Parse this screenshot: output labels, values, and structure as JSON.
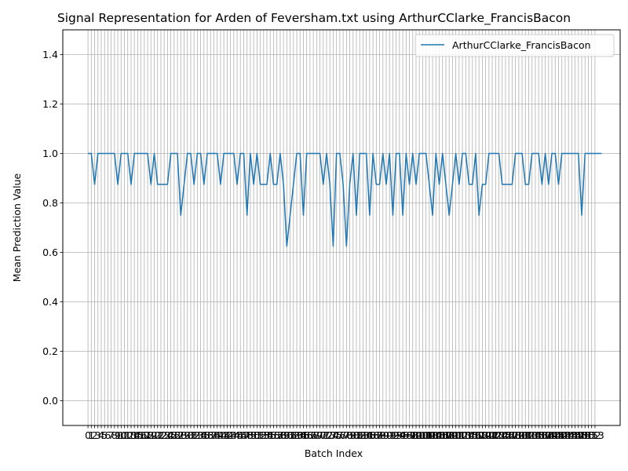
{
  "chart_data": {
    "type": "line",
    "title": "Signal Representation for Arden of Feversham.txt using ArthurCClarke_FrancisBacon",
    "xlabel": "Batch Index",
    "ylabel": "Mean Prediction Value",
    "xlim": [
      -7.6,
      160.6
    ],
    "ylim": [
      -0.1,
      1.5
    ],
    "yticks": [
      0.0,
      0.2,
      0.4,
      0.6,
      0.8,
      1.0,
      1.2,
      1.4
    ],
    "ytick_labels": [
      "0.0",
      "0.2",
      "0.4",
      "0.6",
      "0.8",
      "1.0",
      "1.2",
      "1.4"
    ],
    "xticks_every_integer": [
      0,
      153
    ],
    "grid": true,
    "legend_position": "upper right",
    "series": [
      {
        "name": "ArthurCClarke_FrancisBacon",
        "color": "#1f77b4",
        "x_start": 0,
        "values": [
          1.0,
          1.0,
          0.875,
          1.0,
          1.0,
          1.0,
          1.0,
          1.0,
          1.0,
          0.875,
          1.0,
          1.0,
          1.0,
          0.875,
          1.0,
          1.0,
          1.0,
          1.0,
          1.0,
          0.875,
          1.0,
          0.875,
          0.875,
          0.875,
          0.875,
          1.0,
          1.0,
          1.0,
          0.75,
          0.875,
          1.0,
          1.0,
          0.875,
          1.0,
          1.0,
          0.875,
          1.0,
          1.0,
          1.0,
          1.0,
          0.875,
          1.0,
          1.0,
          1.0,
          1.0,
          0.875,
          1.0,
          1.0,
          0.75,
          1.0,
          0.875,
          1.0,
          0.875,
          0.875,
          0.875,
          1.0,
          0.875,
          0.875,
          1.0,
          0.875,
          0.625,
          0.75,
          0.875,
          1.0,
          1.0,
          0.75,
          1.0,
          1.0,
          1.0,
          1.0,
          1.0,
          0.875,
          1.0,
          0.875,
          0.625,
          1.0,
          1.0,
          0.875,
          0.625,
          0.875,
          1.0,
          0.75,
          1.0,
          1.0,
          1.0,
          0.75,
          1.0,
          0.875,
          0.875,
          1.0,
          0.875,
          1.0,
          0.75,
          1.0,
          1.0,
          0.75,
          1.0,
          0.875,
          1.0,
          0.875,
          1.0,
          1.0,
          1.0,
          0.875,
          0.75,
          1.0,
          0.875,
          1.0,
          0.875,
          0.75,
          0.875,
          1.0,
          0.875,
          1.0,
          1.0,
          0.875,
          0.875,
          1.0,
          0.75,
          0.875,
          0.875,
          1.0,
          1.0,
          1.0,
          1.0,
          0.875,
          0.875,
          0.875,
          0.875,
          1.0,
          1.0,
          1.0,
          0.875,
          0.875,
          1.0,
          1.0,
          1.0,
          0.875,
          1.0,
          0.875,
          1.0,
          1.0,
          0.875,
          1.0,
          1.0,
          1.0,
          1.0,
          1.0,
          1.0,
          0.75,
          1.0,
          1.0,
          1.0,
          1.0,
          1.0,
          1.0
        ]
      }
    ]
  }
}
